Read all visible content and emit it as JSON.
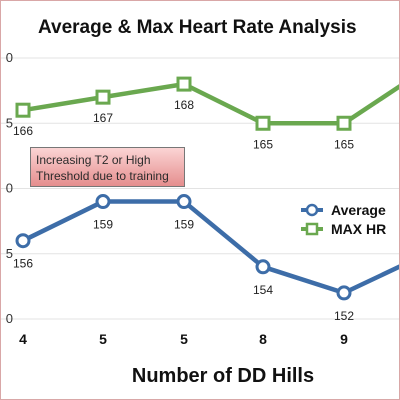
{
  "chart_data": {
    "type": "line",
    "title": "Average & Max Heart Rate Analysis",
    "xlabel": "Number of DD Hills",
    "ylabel": "",
    "categories": [
      "4",
      "5",
      "5",
      "8",
      "9",
      ""
    ],
    "yticks": [
      "0",
      "5",
      "0",
      "5",
      "0"
    ],
    "ylim": [
      150,
      170
    ],
    "grid": true,
    "legend_position": "right",
    "series": [
      {
        "name": "MAX HR",
        "color": "#6aa84f",
        "marker": "square",
        "values": [
          166,
          167,
          168,
          165,
          165,
          null
        ],
        "labels": [
          "166",
          "167",
          "168",
          "165",
          "165",
          ""
        ]
      },
      {
        "name": "Average",
        "color": "#3d6da8",
        "marker": "circle",
        "values": [
          156,
          159,
          159,
          154,
          152,
          null
        ],
        "labels": [
          "156",
          "159",
          "159",
          "154",
          "152",
          ""
        ]
      }
    ],
    "annotation": "Increasing T2 or High Threshold due to training"
  }
}
